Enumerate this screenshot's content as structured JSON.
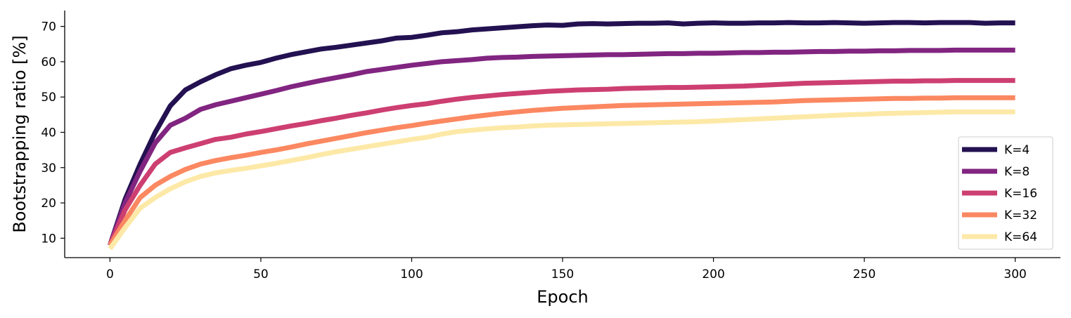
{
  "chart_data": {
    "type": "line",
    "xlabel": "Epoch",
    "ylabel": "Bootstrapping ratio [%]",
    "xlim": [
      -15,
      315
    ],
    "ylim": [
      4.5,
      74.5
    ],
    "xticks": [
      0,
      50,
      100,
      150,
      200,
      250,
      300
    ],
    "yticks": [
      10,
      20,
      30,
      40,
      50,
      60,
      70
    ],
    "grid": false,
    "legend_position": "lower-right",
    "x": [
      0,
      5,
      10,
      15,
      20,
      25,
      30,
      35,
      40,
      45,
      50,
      55,
      60,
      65,
      70,
      75,
      80,
      85,
      90,
      95,
      100,
      105,
      110,
      115,
      120,
      125,
      130,
      135,
      140,
      145,
      150,
      155,
      160,
      165,
      170,
      175,
      180,
      185,
      190,
      195,
      200,
      205,
      210,
      215,
      220,
      225,
      230,
      235,
      240,
      245,
      250,
      255,
      260,
      265,
      270,
      275,
      280,
      285,
      290,
      295,
      300
    ],
    "series": [
      {
        "name": "K=4",
        "color": "#231151",
        "values": [
          8.0,
          21.0,
          31.0,
          40.0,
          47.5,
          52.0,
          54.3,
          56.3,
          58.0,
          59.0,
          59.8,
          61.0,
          62.0,
          62.8,
          63.6,
          64.1,
          64.7,
          65.3,
          65.9,
          66.7,
          66.9,
          67.5,
          68.2,
          68.5,
          69.0,
          69.3,
          69.6,
          69.9,
          70.2,
          70.4,
          70.3,
          70.7,
          70.8,
          70.7,
          70.8,
          70.9,
          70.9,
          71.0,
          70.7,
          70.9,
          71.0,
          70.9,
          70.9,
          71.0,
          71.0,
          71.1,
          71.0,
          71.0,
          71.1,
          71.0,
          70.9,
          71.0,
          71.1,
          71.1,
          71.0,
          71.1,
          71.1,
          71.1,
          70.9,
          71.0,
          71.0
        ]
      },
      {
        "name": "K=8",
        "color": "#812581",
        "values": [
          8.0,
          20.0,
          29.0,
          37.0,
          42.0,
          44.0,
          46.5,
          47.8,
          48.8,
          49.8,
          50.8,
          51.8,
          52.9,
          53.8,
          54.7,
          55.5,
          56.3,
          57.2,
          57.8,
          58.4,
          59.0,
          59.5,
          60.0,
          60.3,
          60.6,
          61.0,
          61.2,
          61.3,
          61.5,
          61.6,
          61.7,
          61.8,
          61.9,
          62.0,
          62.0,
          62.1,
          62.2,
          62.3,
          62.3,
          62.4,
          62.4,
          62.5,
          62.6,
          62.6,
          62.7,
          62.7,
          62.8,
          62.9,
          62.9,
          63.0,
          63.0,
          63.1,
          63.1,
          63.2,
          63.2,
          63.2,
          63.3,
          63.3,
          63.3,
          63.3,
          63.3
        ]
      },
      {
        "name": "K=16",
        "color": "#cd3f71",
        "values": [
          8.0,
          18.0,
          25.0,
          31.0,
          34.3,
          35.6,
          36.8,
          38.0,
          38.6,
          39.5,
          40.2,
          41.0,
          41.8,
          42.5,
          43.3,
          44.0,
          44.8,
          45.5,
          46.3,
          47.0,
          47.6,
          48.1,
          48.8,
          49.4,
          49.9,
          50.3,
          50.7,
          51.0,
          51.3,
          51.6,
          51.8,
          52.0,
          52.1,
          52.2,
          52.4,
          52.5,
          52.6,
          52.7,
          52.7,
          52.8,
          52.9,
          53.0,
          53.1,
          53.3,
          53.5,
          53.7,
          53.9,
          54.0,
          54.1,
          54.2,
          54.3,
          54.4,
          54.5,
          54.5,
          54.6,
          54.6,
          54.7,
          54.7,
          54.7,
          54.7,
          54.7
        ]
      },
      {
        "name": "K=32",
        "color": "#fb8861",
        "values": [
          8.0,
          15.0,
          21.5,
          25.0,
          27.5,
          29.5,
          31.0,
          32.0,
          32.8,
          33.5,
          34.3,
          35.0,
          35.8,
          36.7,
          37.5,
          38.3,
          39.1,
          39.9,
          40.6,
          41.3,
          41.9,
          42.6,
          43.2,
          43.8,
          44.4,
          44.9,
          45.4,
          45.8,
          46.2,
          46.5,
          46.8,
          47.0,
          47.2,
          47.4,
          47.6,
          47.7,
          47.8,
          47.9,
          48.0,
          48.1,
          48.2,
          48.3,
          48.4,
          48.5,
          48.6,
          48.8,
          49.0,
          49.1,
          49.2,
          49.3,
          49.4,
          49.5,
          49.6,
          49.6,
          49.7,
          49.7,
          49.8,
          49.8,
          49.8,
          49.8,
          49.8
        ]
      },
      {
        "name": "K=64",
        "color": "#fde9a7",
        "values": [
          7.0,
          13.0,
          18.5,
          21.5,
          24.0,
          26.0,
          27.5,
          28.5,
          29.2,
          29.8,
          30.5,
          31.2,
          32.0,
          32.8,
          33.7,
          34.5,
          35.2,
          35.9,
          36.6,
          37.3,
          38.0,
          38.6,
          39.5,
          40.2,
          40.6,
          41.0,
          41.3,
          41.5,
          41.8,
          42.0,
          42.1,
          42.2,
          42.3,
          42.4,
          42.5,
          42.6,
          42.7,
          42.8,
          42.9,
          43.0,
          43.2,
          43.4,
          43.6,
          43.8,
          44.0,
          44.2,
          44.4,
          44.6,
          44.8,
          45.0,
          45.1,
          45.3,
          45.4,
          45.5,
          45.6,
          45.7,
          45.8,
          45.8,
          45.8,
          45.8,
          45.8
        ]
      }
    ]
  }
}
